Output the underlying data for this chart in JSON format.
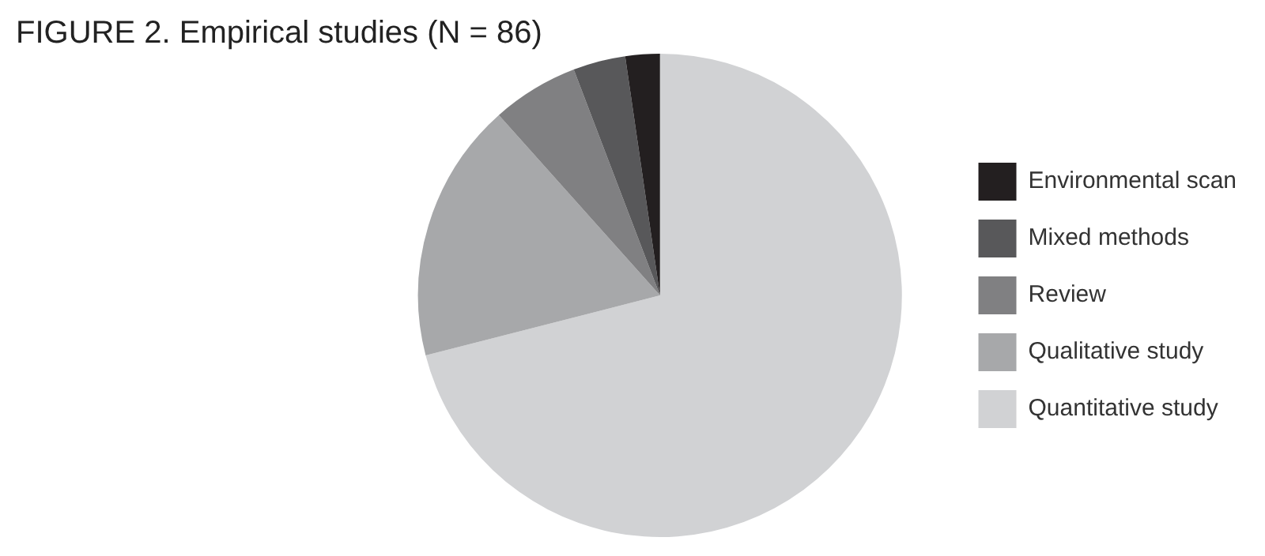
{
  "chart_data": {
    "type": "pie",
    "title": "FIGURE 2. Empirical studies (N = 86)",
    "categories": [
      "Environmental scan",
      "Mixed methods",
      "Review",
      "Qualitative study",
      "Quantitative study"
    ],
    "values": [
      2.3,
      3.5,
      5.8,
      17.4,
      71.0
    ],
    "colors": [
      "#231f20",
      "#58585a",
      "#808082",
      "#a7a8aa",
      "#d1d2d4"
    ],
    "legend": "right"
  }
}
